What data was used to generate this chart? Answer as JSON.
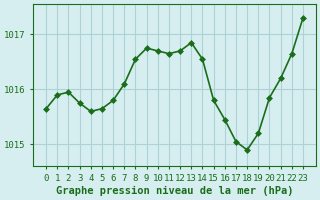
{
  "x": [
    0,
    1,
    2,
    3,
    4,
    5,
    6,
    7,
    8,
    9,
    10,
    11,
    12,
    13,
    14,
    15,
    16,
    17,
    18,
    19,
    20,
    21,
    22,
    23
  ],
  "y": [
    1015.65,
    1015.9,
    1015.95,
    1015.75,
    1015.6,
    1015.65,
    1015.8,
    1016.1,
    1016.55,
    1016.75,
    1016.7,
    1016.65,
    1016.7,
    1016.85,
    1016.55,
    1015.8,
    1015.45,
    1015.05,
    1014.9,
    1015.2,
    1015.85,
    1016.2,
    1016.65,
    1017.3
  ],
  "line_color": "#1a6e1a",
  "marker": "D",
  "marker_size": 3,
  "background_color": "#d6eef0",
  "grid_color": "#b0d0d8",
  "xlabel": "Graphe pression niveau de la mer (hPa)",
  "ylabel": "",
  "ylim": [
    1014.6,
    1017.55
  ],
  "yticks": [
    1015,
    1016,
    1017
  ],
  "xticks": [
    0,
    1,
    2,
    3,
    4,
    5,
    6,
    7,
    8,
    9,
    10,
    11,
    12,
    13,
    14,
    15,
    16,
    17,
    18,
    19,
    20,
    21,
    22,
    23
  ],
  "tick_label_fontsize": 6.5,
  "xlabel_fontsize": 7.5,
  "line_width": 1.2
}
